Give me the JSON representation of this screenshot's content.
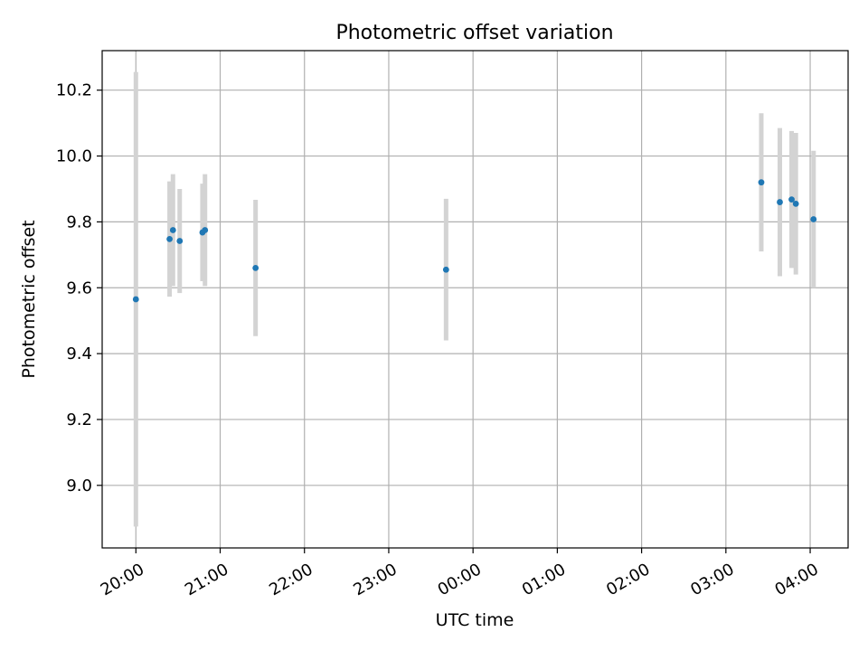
{
  "chart_data": {
    "type": "scatter",
    "title": "Photometric offset variation",
    "xlabel": "UTC time",
    "ylabel": "Photometric offset",
    "x_unit": "UTC time (decimal hours; values past 24 are after midnight)",
    "xlim": [
      19.6,
      28.45
    ],
    "ylim": [
      8.81,
      10.32
    ],
    "x_ticks": [
      {
        "value": 20,
        "label": "20:00"
      },
      {
        "value": 21,
        "label": "21:00"
      },
      {
        "value": 22,
        "label": "22:00"
      },
      {
        "value": 23,
        "label": "23:00"
      },
      {
        "value": 24,
        "label": "00:00"
      },
      {
        "value": 25,
        "label": "01:00"
      },
      {
        "value": 26,
        "label": "02:00"
      },
      {
        "value": 27,
        "label": "03:00"
      },
      {
        "value": 28,
        "label": "04:00"
      }
    ],
    "y_ticks": [
      {
        "value": 9.0,
        "label": "9.0"
      },
      {
        "value": 9.2,
        "label": "9.2"
      },
      {
        "value": 9.4,
        "label": "9.4"
      },
      {
        "value": 9.6,
        "label": "9.6"
      },
      {
        "value": 9.8,
        "label": "9.8"
      },
      {
        "value": 10.0,
        "label": "10.0"
      },
      {
        "value": 10.2,
        "label": "10.2"
      }
    ],
    "grid": true,
    "colors": {
      "point": "#1f77b4",
      "errorbar": "#d3d3d3",
      "grid": "#b0b0b0"
    },
    "points": [
      {
        "x": 20.0,
        "y": 9.565,
        "err": 0.69
      },
      {
        "x": 20.4,
        "y": 9.748,
        "err": 0.175
      },
      {
        "x": 20.44,
        "y": 9.775,
        "err": 0.17
      },
      {
        "x": 20.52,
        "y": 9.742,
        "err": 0.158
      },
      {
        "x": 20.79,
        "y": 9.768,
        "err": 0.148
      },
      {
        "x": 20.82,
        "y": 9.775,
        "err": 0.17
      },
      {
        "x": 21.42,
        "y": 9.66,
        "err": 0.207
      },
      {
        "x": 23.68,
        "y": 9.655,
        "err": 0.215
      },
      {
        "x": 27.42,
        "y": 9.92,
        "err": 0.21
      },
      {
        "x": 27.64,
        "y": 9.86,
        "err": 0.225
      },
      {
        "x": 27.78,
        "y": 9.868,
        "err": 0.208
      },
      {
        "x": 27.83,
        "y": 9.855,
        "err": 0.215
      },
      {
        "x": 28.04,
        "y": 9.808,
        "err": 0.208
      }
    ]
  }
}
